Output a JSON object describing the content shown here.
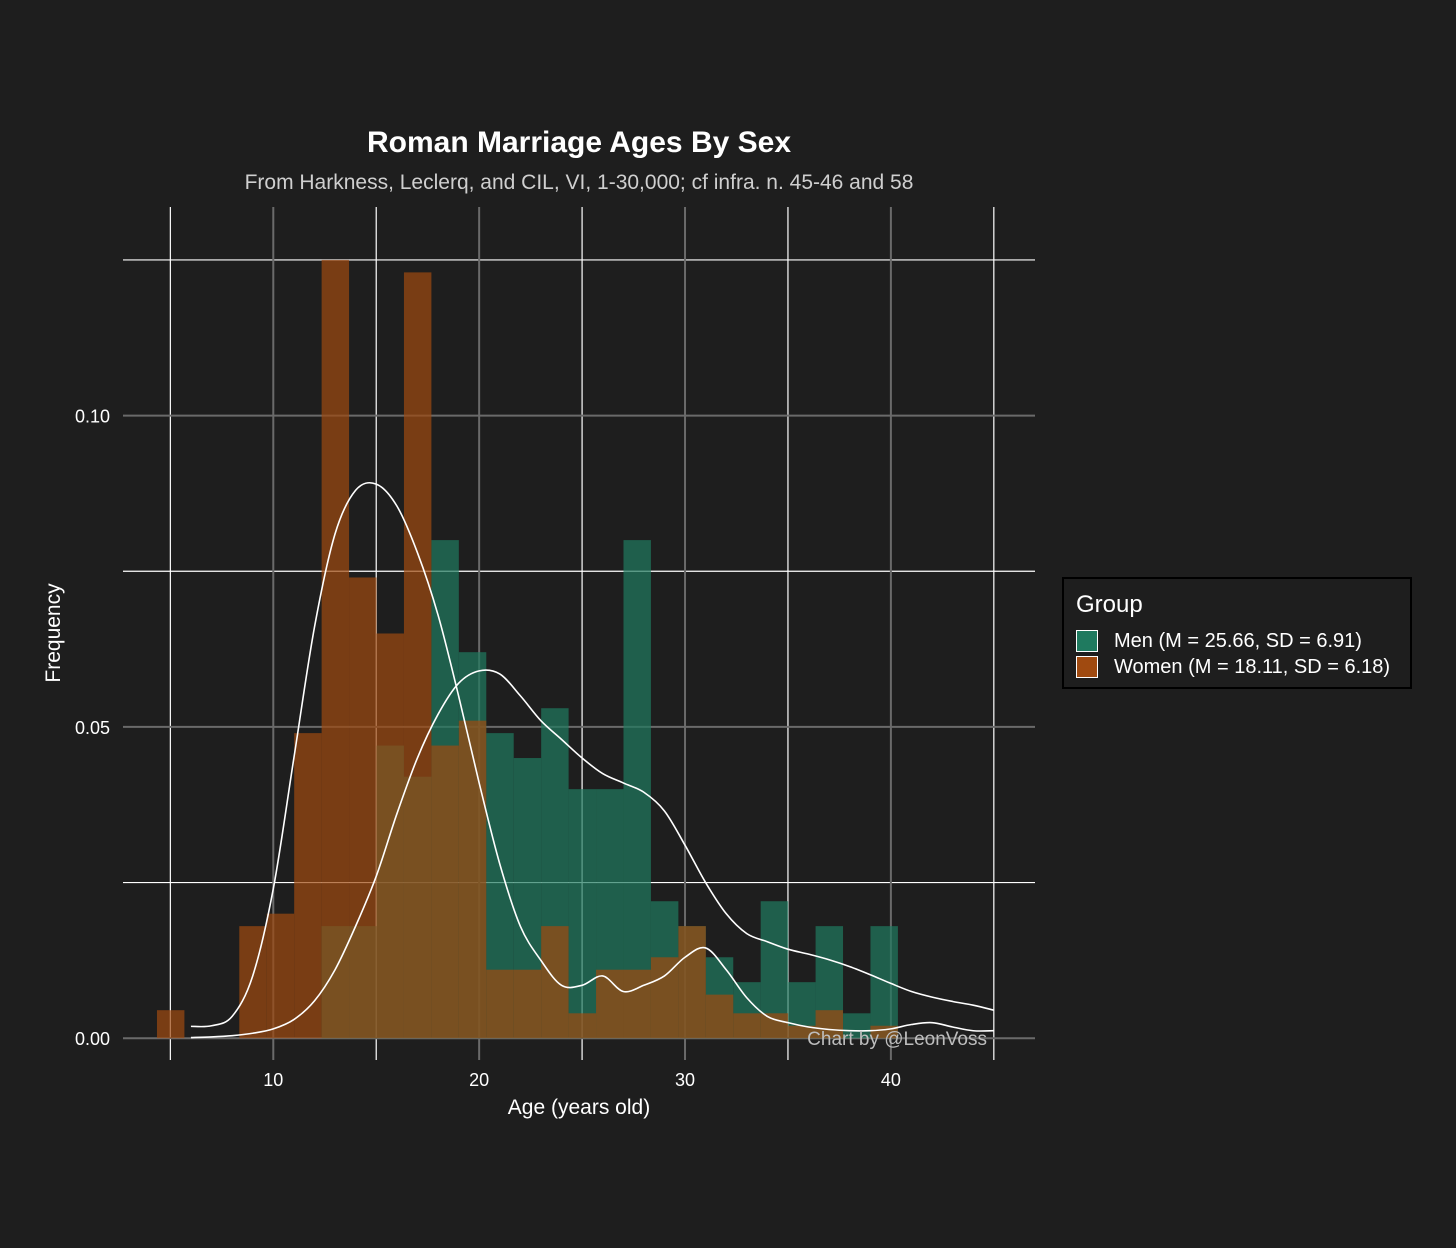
{
  "chart_data": {
    "type": "bar",
    "title": "Roman Marriage Ages By Sex",
    "subtitle": "From Harkness, Leclerq, and CIL, VI, 1-30,000; cf infra. n. 45-46 and 58",
    "xlabel": "Age (years old)",
    "ylabel": "Frequency",
    "caption": "Chart by @LeonVoss",
    "xlim": [
      2.7,
      47.0
    ],
    "ylim": [
      -0.0035,
      0.1335
    ],
    "x_ticks": [
      10,
      20,
      30,
      40
    ],
    "x_tick_labels": [
      "10",
      "20",
      "30",
      "40"
    ],
    "y_ticks": [
      0.0,
      0.05,
      0.1
    ],
    "y_tick_labels": [
      "0.00",
      "0.05",
      "0.10"
    ],
    "x_minor_gridlines": [
      5,
      15,
      25,
      35,
      45
    ],
    "y_minor_gridlines": [
      0.025,
      0.075,
      0.125
    ],
    "grid": true,
    "legend": {
      "title": "Group",
      "position": "right",
      "entries": [
        "Men (M = 25.66, SD = 6.91)",
        "Women (M = 18.11, SD = 6.18)"
      ]
    },
    "bin_width": 1.333,
    "bin_start": 4.35,
    "series": [
      {
        "name": "Men (M = 25.66, SD = 6.91)",
        "color": "#1f7a5f",
        "values": [
          0,
          0,
          0,
          0,
          0,
          0,
          0.018,
          0.018,
          0.047,
          0.042,
          0.08,
          0.062,
          0.049,
          0.045,
          0.053,
          0.04,
          0.04,
          0.08,
          0.022,
          0.018,
          0.013,
          0.009,
          0.022,
          0.009,
          0.018,
          0.004,
          0.018
        ]
      },
      {
        "name": "Women (M = 18.11, SD = 6.18)",
        "color": "#a04a10",
        "values": [
          0.0045,
          0,
          0,
          0.018,
          0.02,
          0.049,
          0.125,
          0.074,
          0.065,
          0.123,
          0.047,
          0.051,
          0.011,
          0.011,
          0.018,
          0.004,
          0.011,
          0.011,
          0.013,
          0.018,
          0.007,
          0.004,
          0.004,
          0.002,
          0.0045,
          0,
          0.002
        ]
      }
    ],
    "density": [
      {
        "name": "Women (M = 18.11, SD = 6.18)",
        "x": [
          6,
          7,
          8,
          9,
          10,
          11,
          12,
          13,
          14,
          15,
          16,
          17,
          18,
          19,
          20,
          21,
          22,
          23,
          24,
          25,
          26,
          27,
          28,
          29,
          30,
          31,
          32,
          33,
          34,
          35,
          36,
          37,
          38,
          39,
          40,
          41,
          42,
          43,
          44,
          45
        ],
        "y": [
          0.0019,
          0.002,
          0.0035,
          0.01,
          0.024,
          0.045,
          0.066,
          0.081,
          0.088,
          0.089,
          0.0855,
          0.078,
          0.068,
          0.055,
          0.041,
          0.028,
          0.018,
          0.0125,
          0.0085,
          0.0085,
          0.01,
          0.0075,
          0.0085,
          0.01,
          0.013,
          0.0145,
          0.011,
          0.0065,
          0.0035,
          0.0025,
          0.0018,
          0.0014,
          0.0012,
          0.0012,
          0.0015,
          0.0022,
          0.0025,
          0.0018,
          0.0012,
          0.0012
        ]
      },
      {
        "name": "Men (M = 25.66, SD = 6.91)",
        "x": [
          6,
          7,
          8,
          9,
          10,
          11,
          12,
          13,
          14,
          15,
          16,
          17,
          18,
          19,
          20,
          21,
          22,
          23,
          24,
          25,
          26,
          27,
          28,
          29,
          30,
          31,
          32,
          33,
          34,
          35,
          36,
          37,
          38,
          39,
          40,
          41,
          42,
          43,
          44,
          45
        ],
        "y": [
          0.0001,
          0.0002,
          0.0004,
          0.0008,
          0.0015,
          0.003,
          0.006,
          0.011,
          0.018,
          0.026,
          0.036,
          0.045,
          0.052,
          0.057,
          0.059,
          0.0585,
          0.055,
          0.051,
          0.048,
          0.045,
          0.0425,
          0.041,
          0.0395,
          0.0365,
          0.031,
          0.025,
          0.02,
          0.0168,
          0.0155,
          0.0143,
          0.0135,
          0.0126,
          0.0115,
          0.0102,
          0.0088,
          0.0075,
          0.0066,
          0.0059,
          0.0053,
          0.0045
        ]
      }
    ]
  }
}
